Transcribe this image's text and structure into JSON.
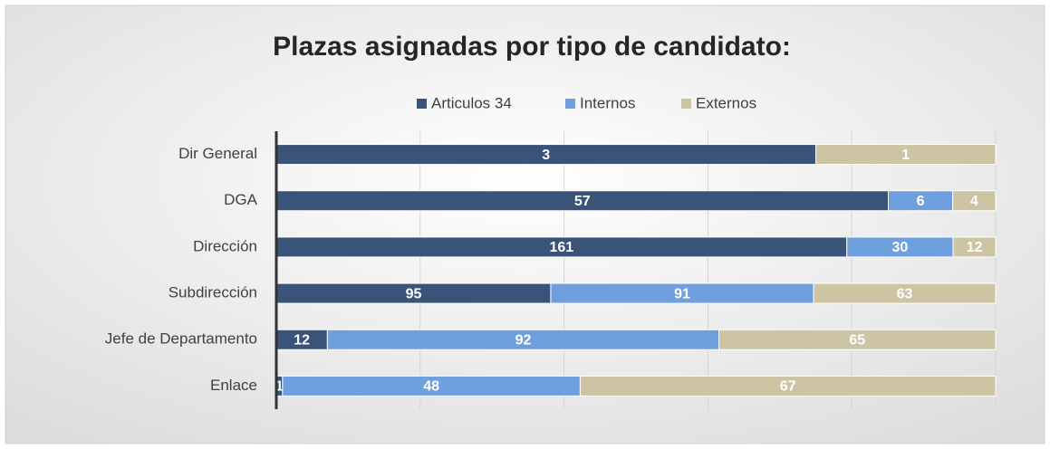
{
  "chart_data": {
    "type": "bar",
    "orientation": "horizontal",
    "stacking": "percent",
    "title": "Plazas asignadas por tipo de candidato:",
    "categories": [
      "Dir General",
      "DGA",
      "Dirección",
      "Subdirección",
      "Jefe de Departamento",
      "Enlace"
    ],
    "series": [
      {
        "name": "Articulos 34",
        "color": "#3a5378",
        "values": [
          3,
          57,
          161,
          95,
          12,
          1
        ]
      },
      {
        "name": "Internos",
        "color": "#6f9fdc",
        "values": [
          null,
          6,
          30,
          91,
          92,
          48
        ]
      },
      {
        "name": "Externos",
        "color": "#cdc4a3",
        "values": [
          1,
          4,
          12,
          63,
          65,
          67
        ]
      }
    ],
    "xlim": [
      0,
      100
    ],
    "xticks": [
      0,
      20,
      40,
      60,
      80,
      100
    ],
    "grid": true,
    "legend": "top"
  }
}
